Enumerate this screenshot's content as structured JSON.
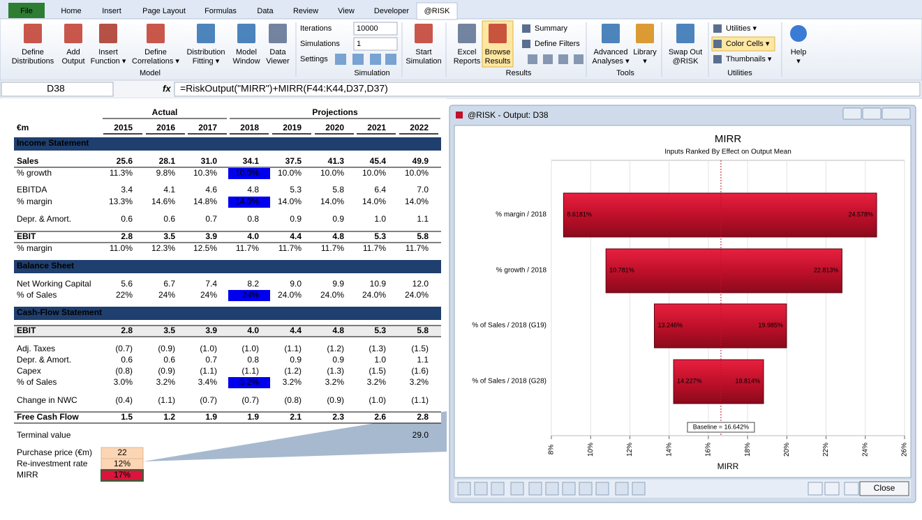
{
  "tabs": [
    "File",
    "Home",
    "Insert",
    "Page Layout",
    "Formulas",
    "Data",
    "Review",
    "View",
    "Developer",
    "@RISK"
  ],
  "ribbon": {
    "buttons": [
      [
        "Define",
        "Distributions"
      ],
      [
        "Add",
        "Output"
      ],
      [
        "Insert",
        "Function ▾"
      ],
      [
        "Define",
        "Correlations ▾"
      ],
      [
        "Distribution",
        "Fitting ▾"
      ],
      [
        "Model",
        "Window"
      ],
      [
        "Data",
        "Viewer"
      ],
      [
        "Start",
        "Simulation"
      ],
      [
        "Excel",
        "Reports"
      ],
      [
        "Browse",
        "Results"
      ],
      [
        "Advanced",
        "Analyses ▾"
      ],
      [
        "Library",
        "▾"
      ],
      [
        "Swap Out",
        "@RISK"
      ],
      [
        "Help",
        "▾"
      ]
    ],
    "small_buttons": [
      "Summary",
      "Define Filters",
      "Utilities ▾",
      "Color Cells ▾",
      "Thumbnails ▾"
    ],
    "iterations_label": "Iterations",
    "iterations": "10000",
    "simulations_label": "Simulations",
    "simulations": "1",
    "settings_label": "Settings",
    "groups": [
      "Model",
      "Simulation",
      "Results",
      "Tools",
      "Utilities"
    ]
  },
  "formula_bar": {
    "name_box": "D38",
    "fx": "fx",
    "formula": "=RiskOutput(\"MIRR\")+MIRR(F44:K44,D37,D37)"
  },
  "sheet": {
    "actual": "Actual",
    "projections": "Projections",
    "unit": "€m",
    "years": [
      "2015",
      "2016",
      "2017",
      "2018",
      "2019",
      "2020",
      "2021",
      "2022"
    ],
    "rows": [
      {
        "section": "Income Statement"
      },
      {
        "label": "Sales",
        "cells": [
          "25.6",
          "28.1",
          "31.0",
          "34.1",
          "37.5",
          "41.3",
          "45.4",
          "49.9"
        ]
      },
      {
        "label": "% growth",
        "cells": [
          "11.3%",
          "9.8%",
          "10.3%",
          "10.0%",
          "10.0%",
          "10.0%",
          "10.0%",
          "10.0%"
        ]
      },
      {
        "label": "EBITDA",
        "cells": [
          "3.4",
          "4.1",
          "4.6",
          "4.8",
          "5.3",
          "5.8",
          "6.4",
          "7.0"
        ]
      },
      {
        "label": "% margin",
        "cells": [
          "13.3%",
          "14.6%",
          "14.8%",
          "14.0%",
          "14.0%",
          "14.0%",
          "14.0%",
          "14.0%"
        ]
      },
      {
        "label": "Depr. & Amort.",
        "cells": [
          "0.6",
          "0.6",
          "0.7",
          "0.8",
          "0.9",
          "0.9",
          "1.0",
          "1.1"
        ]
      },
      {
        "label": "EBIT",
        "cells": [
          "2.8",
          "3.5",
          "3.9",
          "4.0",
          "4.4",
          "4.8",
          "5.3",
          "5.8"
        ]
      },
      {
        "label": "% margin",
        "cells": [
          "11.0%",
          "12.3%",
          "12.5%",
          "11.7%",
          "11.7%",
          "11.7%",
          "11.7%",
          "11.7%"
        ]
      },
      {
        "section": "Balance Sheet"
      },
      {
        "label": "Net Working Capital",
        "cells": [
          "5.6",
          "6.7",
          "7.4",
          "8.2",
          "9.0",
          "9.9",
          "10.9",
          "12.0"
        ]
      },
      {
        "label": "% of Sales",
        "cells": [
          "22%",
          "24%",
          "24%",
          "24%",
          "24.0%",
          "24.0%",
          "24.0%",
          "24.0%"
        ]
      },
      {
        "section": "Cash-Flow Statement"
      },
      {
        "label": "EBIT",
        "cells": [
          "2.8",
          "3.5",
          "3.9",
          "4.0",
          "4.4",
          "4.8",
          "5.3",
          "5.8"
        ]
      },
      {
        "label": "Adj. Taxes",
        "cells": [
          "(0.7)",
          "(0.9)",
          "(1.0)",
          "(1.0)",
          "(1.1)",
          "(1.2)",
          "(1.3)",
          "(1.5)"
        ]
      },
      {
        "label": "Depr. & Amort.",
        "cells": [
          "0.6",
          "0.6",
          "0.7",
          "0.8",
          "0.9",
          "0.9",
          "1.0",
          "1.1"
        ]
      },
      {
        "label": "Capex",
        "cells": [
          "(0.8)",
          "(0.9)",
          "(1.1)",
          "(1.1)",
          "(1.2)",
          "(1.3)",
          "(1.5)",
          "(1.6)"
        ]
      },
      {
        "label": "% of Sales",
        "cells": [
          "3.0%",
          "3.2%",
          "3.4%",
          "3.2%",
          "3.2%",
          "3.2%",
          "3.2%",
          "3.2%"
        ]
      },
      {
        "label": "Change in NWC",
        "cells": [
          "(0.4)",
          "(1.1)",
          "(0.7)",
          "(0.7)",
          "(0.8)",
          "(0.9)",
          "(1.0)",
          "(1.1)"
        ]
      },
      {
        "label": "Free Cash Flow",
        "cells": [
          "1.5",
          "1.2",
          "1.9",
          "1.9",
          "2.1",
          "2.3",
          "2.6",
          "2.8"
        ]
      }
    ],
    "terminal_value": {
      "label": "Terminal value",
      "value": "29.0"
    },
    "inputs": [
      {
        "label": "Purchase price (€m)",
        "value": "22"
      },
      {
        "label": "Re-investment rate",
        "value": "12%"
      },
      {
        "label": "MIRR",
        "value": "17%"
      }
    ]
  },
  "output_window": {
    "title": "@RISK - Output: D38",
    "close": "Close",
    "chart": {
      "type": "tornado",
      "title": "MIRR",
      "subtitle": "Inputs Ranked By Effect on Output Mean",
      "x_label": "MIRR",
      "categories": [
        "% margin / 2018",
        "% growth / 2018",
        "% of Sales / 2018 (G19)",
        "% of Sales / 2018 (G28)"
      ],
      "low": [
        8.6181,
        10.781,
        13.246,
        14.227
      ],
      "high": [
        24.578,
        22.813,
        19.985,
        18.814
      ],
      "low_labels": [
        "8.6181%",
        "10.781%",
        "13.246%",
        "14.227%"
      ],
      "high_labels": [
        "24.578%",
        "22.813%",
        "19.985%",
        "18.814%"
      ],
      "baseline": 16.642,
      "baseline_label": "Baseline = 16.642%",
      "color": "#c0102a",
      "xlim": [
        8,
        26
      ],
      "xticks": [
        {
          "value": 8,
          "label": "8%"
        },
        {
          "value": 10,
          "label": "10%"
        },
        {
          "value": 12,
          "label": "12%"
        },
        {
          "value": 14,
          "label": "14%"
        },
        {
          "value": 16,
          "label": "16%"
        },
        {
          "value": 18,
          "label": "18%"
        },
        {
          "value": 20,
          "label": "20%"
        },
        {
          "value": 22,
          "label": "22%"
        },
        {
          "value": 24,
          "label": "24%"
        },
        {
          "value": 26,
          "label": "26%"
        }
      ],
      "grid": true
    }
  }
}
